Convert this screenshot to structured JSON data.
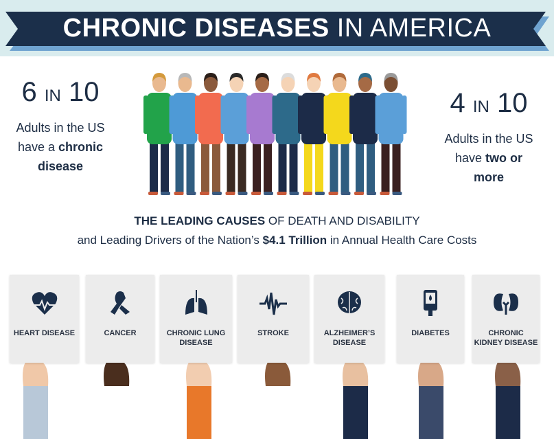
{
  "header": {
    "title_bold": "CHRONIC DISEASES",
    "title_light": "IN AMERICA"
  },
  "colors": {
    "navy": "#1b2f4a",
    "ribbon_shadow": "#6fa3d0",
    "banner_bg": "#d9ecee",
    "card": "#ececec"
  },
  "left_stat": {
    "num": "6",
    "in": "IN",
    "den": "10",
    "line1": "Adults in the US",
    "line2_pre": "have a ",
    "line2_bold": "chronic",
    "line3_bold": "disease"
  },
  "right_stat": {
    "num": "4",
    "in": "IN",
    "den": "10",
    "line1": "Adults in the US",
    "line2_pre": "have ",
    "line2_bold": "two or",
    "line3_bold": "more"
  },
  "subtitle": {
    "l1_bold": "THE LEADING CAUSES",
    "l1_rest": " OF DEATH AND DISABILITY",
    "l2_pre": "and Leading Drivers of the Nation’s ",
    "l2_bold": "$4.1 Trillion",
    "l2_post": " in Annual Health Care Costs"
  },
  "people": [
    {
      "shirt": "#22a34a",
      "pants": "#1c2b48",
      "skin": "#e9b98f",
      "hair": "#d49a3c"
    },
    {
      "shirt": "#4e9ad6",
      "pants": "#2f5d80",
      "skin": "#e9b98f",
      "hair": "#b8b8b8"
    },
    {
      "shirt": "#f26b4f",
      "pants": "#8b5a3c",
      "skin": "#8b5a3c",
      "hair": "#2a1e18"
    },
    {
      "shirt": "#5b9fd8",
      "pants": "#3a2a22",
      "skin": "#f5d3b5",
      "hair": "#2a2a2a"
    },
    {
      "shirt": "#a77ad0",
      "pants": "#3a2020",
      "skin": "#a56a45",
      "hair": "#2a1e18"
    },
    {
      "shirt": "#2d6a8a",
      "pants": "#1c2b48",
      "skin": "#f5d3b5",
      "hair": "#dcdcdc"
    },
    {
      "shirt": "#1c2b48",
      "pants": "#f4d81c",
      "skin": "#f5d3b5",
      "hair": "#e07a40"
    },
    {
      "shirt": "#f4d81c",
      "pants": "#2f5d80",
      "skin": "#e9b98f",
      "hair": "#b06a3a"
    },
    {
      "shirt": "#1c2b48",
      "pants": "#2f5d80",
      "skin": "#a56a45",
      "hair": "#2d6a8a"
    },
    {
      "shirt": "#5b9fd8",
      "pants": "#3a2020",
      "skin": "#7a4e33",
      "hair": "#9a9a9a"
    }
  ],
  "cards": [
    {
      "icon": "heart-icon",
      "l1": "HEART DISEASE",
      "l2": ""
    },
    {
      "icon": "ribbon-icon",
      "l1": "CANCER",
      "l2": ""
    },
    {
      "icon": "lungs-icon",
      "l1": "CHRONIC LUNG",
      "l2": "DISEASE"
    },
    {
      "icon": "pulse-icon",
      "l1": "STROKE",
      "l2": ""
    },
    {
      "icon": "brain-icon",
      "l1": "ALZHEIMER’S",
      "l2": "DISEASE"
    },
    {
      "icon": "glucose-meter-icon",
      "l1": "DIABETES",
      "l2": ""
    },
    {
      "icon": "kidneys-icon",
      "l1": "CHRONIC",
      "l2": "KIDNEY DISEASE"
    }
  ]
}
